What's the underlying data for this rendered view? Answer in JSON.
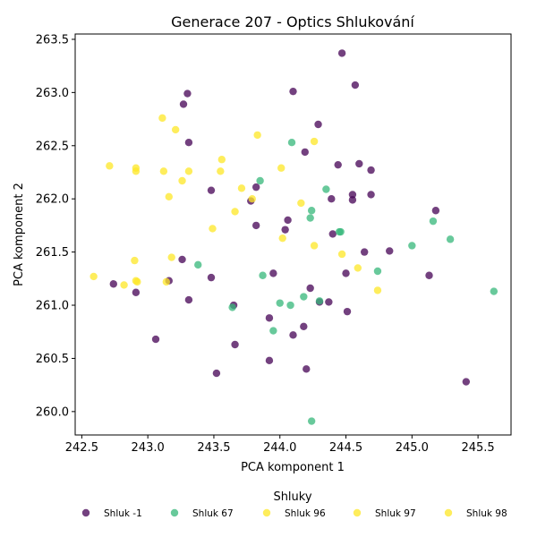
{
  "chart_data": {
    "type": "scatter",
    "title": "Generace 207 - Optics Shlukování",
    "xlabel": "PCA komponent 1",
    "ylabel": "PCA komponent 2",
    "xlim": [
      242.45,
      245.75
    ],
    "ylim": [
      259.78,
      263.55
    ],
    "xticks": [
      242.5,
      243.0,
      243.5,
      244.0,
      244.5,
      245.0,
      245.5
    ],
    "xtick_labels": [
      "242.5",
      "243.0",
      "243.5",
      "244.0",
      "244.5",
      "245.0",
      "245.5"
    ],
    "yticks": [
      260.0,
      260.5,
      261.0,
      261.5,
      262.0,
      262.5,
      263.0,
      263.5
    ],
    "ytick_labels": [
      "260.0",
      "260.5",
      "261.0",
      "261.5",
      "262.0",
      "262.5",
      "263.0",
      "263.5"
    ],
    "grid": false,
    "legend": {
      "title": "Shluky",
      "placement": "bottom-center"
    },
    "series": [
      {
        "name": "Shluk -1",
        "color": "#440154",
        "points": [
          [
            244.47,
            263.37
          ],
          [
            244.57,
            263.07
          ],
          [
            244.1,
            263.01
          ],
          [
            243.3,
            262.99
          ],
          [
            243.27,
            262.89
          ],
          [
            244.29,
            262.7
          ],
          [
            243.31,
            262.53
          ],
          [
            244.19,
            262.44
          ],
          [
            244.44,
            262.32
          ],
          [
            244.6,
            262.33
          ],
          [
            244.69,
            262.27
          ],
          [
            243.82,
            262.11
          ],
          [
            243.48,
            262.08
          ],
          [
            243.78,
            261.98
          ],
          [
            244.39,
            262.0
          ],
          [
            244.55,
            262.04
          ],
          [
            244.55,
            261.99
          ],
          [
            244.69,
            262.04
          ],
          [
            245.18,
            261.89
          ],
          [
            243.82,
            261.75
          ],
          [
            244.06,
            261.8
          ],
          [
            244.04,
            261.71
          ],
          [
            244.4,
            261.67
          ],
          [
            244.64,
            261.5
          ],
          [
            244.83,
            261.51
          ],
          [
            243.26,
            261.43
          ],
          [
            243.95,
            261.3
          ],
          [
            244.5,
            261.3
          ],
          [
            245.13,
            261.28
          ],
          [
            242.74,
            261.2
          ],
          [
            243.16,
            261.23
          ],
          [
            243.48,
            261.26
          ],
          [
            244.23,
            261.16
          ],
          [
            242.91,
            261.12
          ],
          [
            243.31,
            261.05
          ],
          [
            244.3,
            261.03
          ],
          [
            244.37,
            261.03
          ],
          [
            243.65,
            261.0
          ],
          [
            244.51,
            260.94
          ],
          [
            243.92,
            260.88
          ],
          [
            244.18,
            260.8
          ],
          [
            244.1,
            260.72
          ],
          [
            243.06,
            260.68
          ],
          [
            243.66,
            260.63
          ],
          [
            243.92,
            260.48
          ],
          [
            244.2,
            260.4
          ],
          [
            243.52,
            260.36
          ],
          [
            245.41,
            260.28
          ]
        ]
      },
      {
        "name": "Shluk 67",
        "color": "#35b779",
        "points": [
          [
            244.09,
            262.53
          ],
          [
            243.85,
            262.17
          ],
          [
            244.35,
            262.09
          ],
          [
            244.24,
            261.89
          ],
          [
            244.23,
            261.82
          ],
          [
            245.16,
            261.79
          ],
          [
            244.45,
            261.69
          ],
          [
            244.46,
            261.69
          ],
          [
            245.29,
            261.62
          ],
          [
            245.0,
            261.56
          ],
          [
            243.38,
            261.38
          ],
          [
            244.74,
            261.32
          ],
          [
            243.87,
            261.28
          ],
          [
            245.62,
            261.13
          ],
          [
            244.18,
            261.08
          ],
          [
            244.3,
            261.04
          ],
          [
            244.0,
            261.02
          ],
          [
            244.08,
            261.0
          ],
          [
            243.64,
            260.98
          ],
          [
            243.95,
            260.76
          ],
          [
            244.24,
            259.91
          ]
        ]
      },
      {
        "name": "Shluk 96",
        "color": "#fde725",
        "points": [
          [
            243.11,
            262.76
          ],
          [
            243.21,
            262.65
          ],
          [
            243.83,
            262.6
          ],
          [
            244.26,
            262.54
          ],
          [
            242.71,
            262.31
          ],
          [
            242.91,
            262.29
          ],
          [
            243.56,
            262.37
          ],
          [
            244.01,
            262.29
          ]
        ]
      },
      {
        "name": "Shluk 97",
        "color": "#fde725",
        "points": [
          [
            242.91,
            262.26
          ],
          [
            243.12,
            262.26
          ],
          [
            243.31,
            262.26
          ],
          [
            243.55,
            262.26
          ],
          [
            243.26,
            262.17
          ],
          [
            243.71,
            262.1
          ],
          [
            243.16,
            262.02
          ],
          [
            243.79,
            262.0
          ],
          [
            244.16,
            261.96
          ],
          [
            243.66,
            261.88
          ],
          [
            243.49,
            261.72
          ],
          [
            244.02,
            261.63
          ],
          [
            244.26,
            261.56
          ],
          [
            244.47,
            261.48
          ]
        ]
      },
      {
        "name": "Shluk 98",
        "color": "#fde725",
        "points": [
          [
            243.18,
            261.45
          ],
          [
            242.9,
            261.42
          ],
          [
            244.59,
            261.35
          ],
          [
            242.59,
            261.27
          ],
          [
            242.91,
            261.23
          ],
          [
            242.92,
            261.22
          ],
          [
            243.14,
            261.22
          ],
          [
            242.82,
            261.19
          ],
          [
            244.74,
            261.14
          ]
        ]
      }
    ]
  }
}
